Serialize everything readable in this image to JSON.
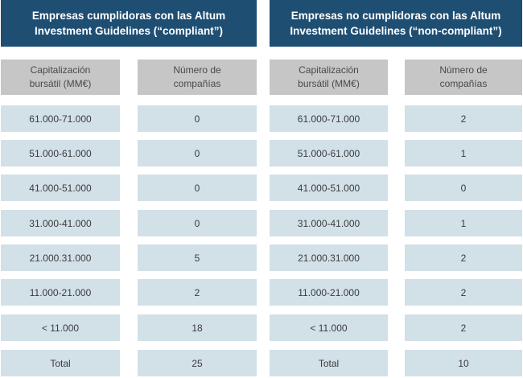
{
  "panels": [
    {
      "title_line1": "Empresas cumplidoras con las Altum",
      "title_line2": "Investment Guidelines (“compliant”)",
      "header": {
        "col1_line1": "Capitalización",
        "col1_line2": "bursátil (MM€)",
        "col2_line1": "Número de",
        "col2_line2": "compañías"
      },
      "rows": [
        {
          "range": "61.000-71.000",
          "count": "0"
        },
        {
          "range": "51.000-61.000",
          "count": "0"
        },
        {
          "range": "41.000-51.000",
          "count": "0"
        },
        {
          "range": "31.000-41.000",
          "count": "0"
        },
        {
          "range": "21.000.31.000",
          "count": "5"
        },
        {
          "range": "11.000-21.000",
          "count": "2"
        },
        {
          "range": "< 11.000",
          "count": "18"
        },
        {
          "range": "Total",
          "count": "25"
        }
      ]
    },
    {
      "title_line1": "Empresas no cumplidoras con las Altum",
      "title_line2": "Investment Guidelines (“non-compliant”)",
      "header": {
        "col1_line1": "Capitalización",
        "col1_line2": "bursátil (MM€)",
        "col2_line1": "Número de",
        "col2_line2": "compañías"
      },
      "rows": [
        {
          "range": "61.000-71.000",
          "count": "2"
        },
        {
          "range": "51.000-61.000",
          "count": "1"
        },
        {
          "range": "41.000-51.000",
          "count": "0"
        },
        {
          "range": "31.000-41.000",
          "count": "1"
        },
        {
          "range": "21.000.31.000",
          "count": "2"
        },
        {
          "range": "11.000-21.000",
          "count": "2"
        },
        {
          "range": "< 11.000",
          "count": "2"
        },
        {
          "range": "Total",
          "count": "10"
        }
      ]
    }
  ]
}
